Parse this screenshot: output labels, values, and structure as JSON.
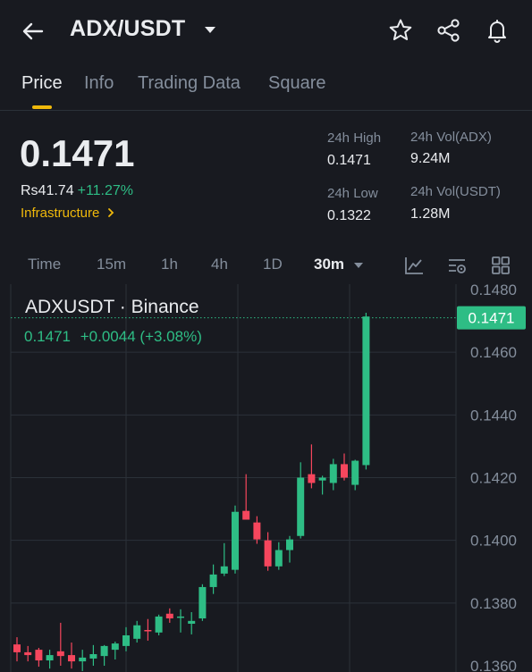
{
  "header": {
    "pair": "ADX/USDT",
    "icons": [
      "back-arrow-icon",
      "chevron-down-icon",
      "star-icon",
      "share-icon",
      "bell-icon"
    ]
  },
  "tabs": [
    {
      "label": "Price",
      "active": true
    },
    {
      "label": "Info",
      "active": false
    },
    {
      "label": "Trading Data",
      "active": false
    },
    {
      "label": "Square",
      "active": false
    }
  ],
  "ticker": {
    "price": "0.1471",
    "fiat": "Rs41.74",
    "change_pct": "+11.27%",
    "category": "Infrastructure",
    "stats": {
      "high_label": "24h High",
      "high_value": "0.1471",
      "low_label": "24h Low",
      "low_value": "0.1322",
      "vol_base_label": "24h Vol(ADX)",
      "vol_base_value": "9.24M",
      "vol_quote_label": "24h Vol(USDT)",
      "vol_quote_value": "1.28M"
    }
  },
  "timeframes": {
    "items": [
      "Time",
      "15m",
      "1h",
      "4h",
      "1D",
      "30m"
    ],
    "active": "30m"
  },
  "colors": {
    "background": "#181a20",
    "up": "#2ebd85",
    "down": "#f6465d",
    "accent": "#f0b90b",
    "muted": "#848e9c",
    "grid": "#2b3139"
  },
  "chart_data": {
    "type": "candlestick",
    "title": "ADXUSDT · Binance",
    "legend": {
      "last": "0.1471",
      "change": "+0.0044",
      "change_pct": "(+3.08%)"
    },
    "y_ticks": [
      "0.1480",
      "0.1460",
      "0.1440",
      "0.1420",
      "0.1400",
      "0.1380",
      "0.1360"
    ],
    "ylim": [
      0.136,
      0.148
    ],
    "last_price": 0.1471,
    "last_price_label": "0.1471",
    "candles": [
      {
        "o": 0.13668,
        "h": 0.13691,
        "l": 0.13614,
        "c": 0.13643
      },
      {
        "o": 0.13643,
        "h": 0.13663,
        "l": 0.13614,
        "c": 0.13634
      },
      {
        "o": 0.13651,
        "h": 0.13657,
        "l": 0.13597,
        "c": 0.13617
      },
      {
        "o": 0.13617,
        "h": 0.13651,
        "l": 0.13591,
        "c": 0.13634
      },
      {
        "o": 0.13646,
        "h": 0.13737,
        "l": 0.136,
        "c": 0.13631
      },
      {
        "o": 0.13634,
        "h": 0.13674,
        "l": 0.13591,
        "c": 0.13614
      },
      {
        "o": 0.13614,
        "h": 0.13651,
        "l": 0.13583,
        "c": 0.13626
      },
      {
        "o": 0.13623,
        "h": 0.13666,
        "l": 0.136,
        "c": 0.13637
      },
      {
        "o": 0.13631,
        "h": 0.13666,
        "l": 0.136,
        "c": 0.13663
      },
      {
        "o": 0.13651,
        "h": 0.13677,
        "l": 0.1362,
        "c": 0.13671
      },
      {
        "o": 0.13663,
        "h": 0.13723,
        "l": 0.13646,
        "c": 0.13697
      },
      {
        "o": 0.13686,
        "h": 0.13743,
        "l": 0.13674,
        "c": 0.13729
      },
      {
        "o": 0.13714,
        "h": 0.13749,
        "l": 0.1368,
        "c": 0.13711
      },
      {
        "o": 0.13706,
        "h": 0.13763,
        "l": 0.13697,
        "c": 0.13757
      },
      {
        "o": 0.13766,
        "h": 0.13783,
        "l": 0.13737,
        "c": 0.13751
      },
      {
        "o": 0.13754,
        "h": 0.1378,
        "l": 0.13706,
        "c": 0.13757
      },
      {
        "o": 0.13734,
        "h": 0.13771,
        "l": 0.137,
        "c": 0.13743
      },
      {
        "o": 0.13751,
        "h": 0.1386,
        "l": 0.13743,
        "c": 0.13851
      },
      {
        "o": 0.13851,
        "h": 0.13923,
        "l": 0.13829,
        "c": 0.13891
      },
      {
        "o": 0.13894,
        "h": 0.13991,
        "l": 0.13886,
        "c": 0.13917
      },
      {
        "o": 0.13906,
        "h": 0.14111,
        "l": 0.13894,
        "c": 0.14091
      },
      {
        "o": 0.14094,
        "h": 0.14211,
        "l": 0.14066,
        "c": 0.14066
      },
      {
        "o": 0.14057,
        "h": 0.14077,
        "l": 0.13989,
        "c": 0.14003
      },
      {
        "o": 0.14,
        "h": 0.14026,
        "l": 0.13903,
        "c": 0.13917
      },
      {
        "o": 0.13917,
        "h": 0.13994,
        "l": 0.13906,
        "c": 0.13969
      },
      {
        "o": 0.13969,
        "h": 0.14014,
        "l": 0.13929,
        "c": 0.14003
      },
      {
        "o": 0.14014,
        "h": 0.14249,
        "l": 0.14006,
        "c": 0.142
      },
      {
        "o": 0.14211,
        "h": 0.14306,
        "l": 0.14166,
        "c": 0.14183
      },
      {
        "o": 0.14191,
        "h": 0.14206,
        "l": 0.14146,
        "c": 0.142
      },
      {
        "o": 0.14183,
        "h": 0.1426,
        "l": 0.1416,
        "c": 0.14243
      },
      {
        "o": 0.14243,
        "h": 0.14277,
        "l": 0.14191,
        "c": 0.142
      },
      {
        "o": 0.14177,
        "h": 0.14257,
        "l": 0.1416,
        "c": 0.14254
      },
      {
        "o": 0.1424,
        "h": 0.14726,
        "l": 0.14226,
        "c": 0.14714
      }
    ]
  }
}
